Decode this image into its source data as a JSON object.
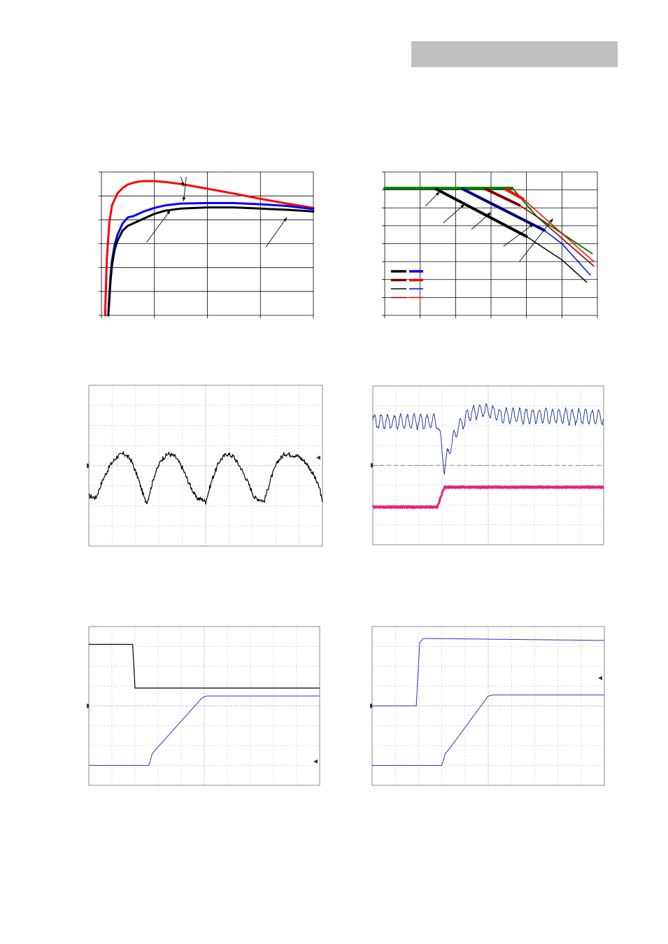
{
  "page": {
    "header_bar_color": "#c0c0c0"
  },
  "chart_data": [
    {
      "id": "chart-1",
      "type": "line",
      "title": "",
      "xlabel": "",
      "ylabel": "",
      "xlim": [
        0,
        4
      ],
      "ylim": [
        0,
        6
      ],
      "grid": true,
      "series": [
        {
          "color": "#ff0000",
          "stroke": 3,
          "x": [
            0.07,
            0.1,
            0.15,
            0.2,
            0.3,
            0.4,
            0.5,
            0.6,
            0.7,
            0.8,
            1.0,
            1.2,
            1.5,
            2.0,
            2.5,
            3.0,
            3.5,
            4.0
          ],
          "y": [
            0.0,
            2.3,
            3.9,
            4.6,
            5.1,
            5.33,
            5.48,
            5.55,
            5.6,
            5.62,
            5.62,
            5.58,
            5.5,
            5.3,
            5.1,
            4.88,
            4.68,
            4.5
          ]
        },
        {
          "color": "#0000ff",
          "stroke": 3,
          "x": [
            0.13,
            0.17,
            0.2,
            0.25,
            0.3,
            0.4,
            0.5,
            0.6,
            0.8,
            1.0,
            1.2,
            1.5,
            2.0,
            2.5,
            3.0,
            3.5,
            4.0
          ],
          "y": [
            0.0,
            1.6,
            2.3,
            2.95,
            3.35,
            3.85,
            4.1,
            4.15,
            4.35,
            4.5,
            4.6,
            4.68,
            4.7,
            4.7,
            4.65,
            4.58,
            4.45
          ]
        },
        {
          "color": "#000000",
          "stroke": 3,
          "x": [
            0.13,
            0.17,
            0.2,
            0.25,
            0.3,
            0.4,
            0.5,
            0.6,
            0.8,
            1.0,
            1.2,
            1.5,
            2.0,
            2.5,
            3.0,
            3.5,
            4.0
          ],
          "y": [
            0.0,
            1.4,
            2.1,
            2.75,
            3.1,
            3.55,
            3.75,
            3.85,
            4.05,
            4.25,
            4.38,
            4.47,
            4.52,
            4.52,
            4.47,
            4.42,
            4.35
          ]
        }
      ],
      "arrows": [
        {
          "from": [
            0.85,
            3.05
          ],
          "to": [
            1.3,
            4.4
          ]
        },
        {
          "from": [
            1.5,
            5.8
          ],
          "to": [
            1.55,
            5.4
          ]
        },
        {
          "from": [
            1.6,
            5.8
          ],
          "to": [
            1.55,
            4.78
          ]
        },
        {
          "from": [
            3.1,
            2.85
          ],
          "to": [
            3.5,
            4.1
          ]
        }
      ]
    },
    {
      "id": "chart-2",
      "type": "line",
      "title": "",
      "xlabel": "",
      "ylabel": "",
      "xlim": [
        0,
        6
      ],
      "ylim": [
        0,
        8
      ],
      "grid": true,
      "series": [
        {
          "color": "#008000",
          "stroke": 4,
          "x": [
            0,
            3.6
          ],
          "y": [
            7.1,
            7.1
          ]
        },
        {
          "color": "#008000",
          "stroke": 2,
          "x": [
            3.6,
            4.3,
            5.85
          ],
          "y": [
            7.1,
            5.5,
            3.45
          ]
        },
        {
          "color": "#000000",
          "stroke": 4,
          "x": [
            1.45,
            4.0
          ],
          "y": [
            7.05,
            4.4
          ]
        },
        {
          "color": "#000000",
          "stroke": 1.5,
          "x": [
            4.0,
            5.0,
            5.7
          ],
          "y": [
            4.4,
            3.1,
            1.85
          ]
        },
        {
          "color": "#000080",
          "stroke": 4,
          "x": [
            2.2,
            4.5
          ],
          "y": [
            7.05,
            4.75
          ]
        },
        {
          "color": "#0000ff",
          "stroke": 1.5,
          "x": [
            4.5,
            5.0,
            5.8
          ],
          "y": [
            4.75,
            4.0,
            2.25
          ]
        },
        {
          "color": "#800000",
          "stroke": 4,
          "x": [
            2.85,
            3.8
          ],
          "y": [
            7.05,
            6.15
          ]
        },
        {
          "color": "#800000",
          "stroke": 1.5,
          "x": [
            3.8,
            4.3,
            5.9
          ],
          "y": [
            6.15,
            5.5,
            2.75
          ]
        },
        {
          "color": "#ff0000",
          "stroke": 4,
          "x": [
            3.4,
            3.9
          ],
          "y": [
            7.05,
            6.5
          ]
        },
        {
          "color": "#ff0000",
          "stroke": 1.5,
          "x": [
            3.9,
            5.9
          ],
          "y": [
            6.5,
            3.0
          ]
        }
      ],
      "legend": [
        {
          "left": "#000000",
          "right": "#0000ff",
          "bold": true
        },
        {
          "left": "#800000",
          "right": "#ff0000",
          "bold": true
        },
        {
          "left": "#000000",
          "right": "#0000ff",
          "bold": false
        },
        {
          "left": "#800000",
          "right": "#ff0000",
          "bold": false
        }
      ],
      "arrows": [
        {
          "from": [
            1.15,
            6.1
          ],
          "to": [
            1.55,
            6.9
          ]
        },
        {
          "from": [
            1.65,
            5.15
          ],
          "to": [
            2.25,
            6.2
          ]
        },
        {
          "from": [
            2.45,
            4.8
          ],
          "to": [
            3.0,
            5.75
          ]
        },
        {
          "from": [
            3.35,
            3.85
          ],
          "to": [
            4.2,
            5.1
          ]
        },
        {
          "from": [
            3.8,
            3.0
          ],
          "to": [
            4.75,
            5.4
          ]
        }
      ]
    },
    {
      "id": "scope-1",
      "type": "line",
      "title": "",
      "xlim": [
        0,
        10
      ],
      "ylim": [
        -4,
        4
      ],
      "grid": "dotted",
      "marker_right": 0.4,
      "series": [
        {
          "color": "#000000",
          "stroke": 1.2,
          "noise": 0.12,
          "x": [
            0,
            0.3,
            0.6,
            0.9,
            1.2,
            1.5,
            1.8,
            2.1,
            2.4,
            2.5,
            2.8,
            3.1,
            3.4,
            3.7,
            4.0,
            4.3,
            4.6,
            4.9,
            5.0,
            5.3,
            5.6,
            5.9,
            6.2,
            6.5,
            6.8,
            7.1,
            7.4,
            7.5,
            7.8,
            8.1,
            8.4,
            8.7,
            9.0,
            9.3,
            9.6,
            9.9,
            10.0
          ],
          "y": [
            -1.5,
            -1.6,
            -0.7,
            0.0,
            0.45,
            0.6,
            0.3,
            -0.6,
            -1.7,
            -1.8,
            -0.5,
            0.3,
            0.6,
            0.45,
            -0.1,
            -0.9,
            -1.6,
            -1.7,
            -1.8,
            -0.6,
            0.25,
            0.6,
            0.45,
            -0.1,
            -0.8,
            -1.6,
            -1.7,
            -1.8,
            -0.6,
            0.25,
            0.6,
            0.55,
            0.45,
            0.15,
            -0.4,
            -1.2,
            -1.9
          ]
        }
      ]
    },
    {
      "id": "scope-2",
      "type": "line",
      "title": "",
      "xlim": [
        0,
        10
      ],
      "ylim": [
        -4,
        4
      ],
      "grid": "dotted",
      "series": [
        {
          "color": "#2b3a9a",
          "stroke": 1,
          "ripple": 0.35,
          "freq": 7,
          "x": [
            0,
            2.8,
            2.9,
            3.1,
            3.3,
            3.7,
            4.2,
            4.8,
            5.5,
            7.0,
            10.0
          ],
          "y": [
            2.2,
            2.2,
            1.5,
            -0.1,
            0.8,
            1.9,
            2.6,
            2.8,
            2.5,
            2.5,
            2.4
          ]
        },
        {
          "color": "#e8207a",
          "stroke": 3,
          "ripple": 0.04,
          "freq": 20,
          "x": [
            0,
            2.8,
            3.0,
            3.1,
            10.0
          ],
          "y": [
            -2.1,
            -2.1,
            -1.4,
            -1.1,
            -1.1
          ]
        }
      ],
      "dashed_levels": [
        0.0
      ]
    },
    {
      "id": "scope-3",
      "type": "line",
      "title": "",
      "xlim": [
        0,
        10
      ],
      "ylim": [
        -4,
        4
      ],
      "grid": "dotted",
      "marker_right": -2.8,
      "series": [
        {
          "color": "#000000",
          "stroke": 1.2,
          "x": [
            0,
            1.9,
            2.0,
            2.1,
            10.0
          ],
          "y": [
            3.1,
            3.1,
            0.9,
            0.9,
            0.9
          ]
        },
        {
          "color": "#3030c0",
          "stroke": 1,
          "x": [
            0,
            2.6,
            2.75,
            2.9,
            4.9,
            5.1,
            10.0
          ],
          "y": [
            -3.0,
            -3.0,
            -2.4,
            -2.2,
            0.4,
            0.5,
            0.5
          ]
        }
      ]
    },
    {
      "id": "scope-4",
      "type": "line",
      "title": "",
      "xlim": [
        0,
        10
      ],
      "ylim": [
        -4,
        4
      ],
      "grid": "dotted",
      "marker_right": 1.4,
      "series": [
        {
          "color": "#3030c0",
          "stroke": 1,
          "x": [
            0,
            1.9,
            2.05,
            2.2,
            10.0
          ],
          "y": [
            0.0,
            0.0,
            3.2,
            3.4,
            3.3
          ]
        },
        {
          "color": "#3030c0",
          "stroke": 1,
          "x": [
            0,
            3.0,
            3.15,
            3.3,
            5.0,
            5.2,
            10.0
          ],
          "y": [
            -3.0,
            -3.0,
            -2.4,
            -2.2,
            0.5,
            0.55,
            0.55
          ]
        }
      ]
    }
  ]
}
